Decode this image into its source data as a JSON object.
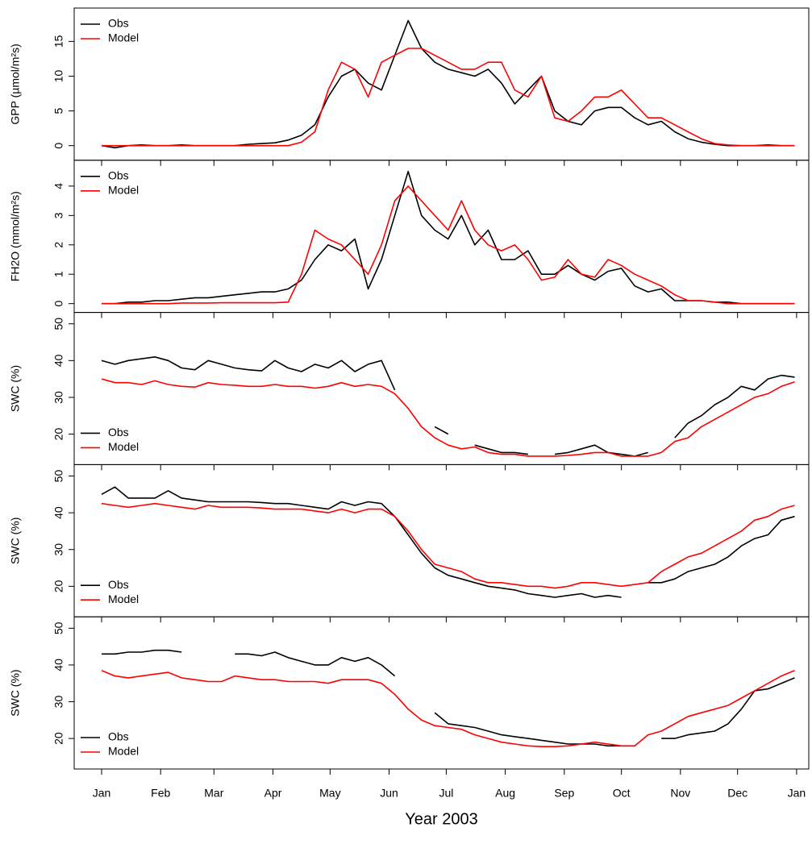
{
  "chart_data": [
    {
      "type": "line",
      "ylabel": "GPP (µmol/m²s)",
      "legend": "top-left",
      "x": [
        1,
        8,
        15,
        22,
        29,
        36,
        43,
        50,
        57,
        64,
        71,
        78,
        85,
        92,
        99,
        106,
        113,
        120,
        127,
        134,
        141,
        148,
        155,
        162,
        169,
        176,
        183,
        190,
        197,
        204,
        211,
        218,
        225,
        232,
        239,
        246,
        253,
        260,
        267,
        274,
        281,
        288,
        295,
        302,
        309,
        316,
        323,
        330,
        337,
        344,
        351,
        358,
        365
      ],
      "xlim": [
        -13.4,
        372.4
      ],
      "ylim": [
        -2.1,
        19.8
      ],
      "yticks": [
        0,
        5,
        10,
        15
      ],
      "series": [
        {
          "name": "Obs",
          "color": "#000000",
          "values": [
            0,
            -0.3,
            0,
            0.1,
            0,
            0,
            0.1,
            0,
            0,
            0,
            0,
            0.2,
            0.3,
            0.4,
            0.8,
            1.5,
            3,
            7,
            10,
            11,
            9,
            8,
            13,
            18,
            14,
            12,
            11,
            10.5,
            10,
            11,
            9,
            6,
            8,
            10,
            5,
            3.5,
            3,
            5,
            5.5,
            5.5,
            4,
            3,
            3.5,
            2,
            1,
            0.5,
            0.2,
            0,
            0,
            0,
            0.1,
            0,
            0
          ]
        },
        {
          "name": "Model",
          "color": "#ff0000",
          "values": [
            0,
            0,
            0,
            0,
            0,
            0,
            0,
            0,
            0,
            0,
            0,
            0,
            0,
            0,
            0,
            0.5,
            2,
            8,
            12,
            11,
            7,
            12,
            13,
            14,
            14,
            13,
            12,
            11,
            11,
            12,
            12,
            8,
            7,
            10,
            4,
            3.5,
            5,
            7,
            7,
            8,
            6,
            4,
            4,
            3,
            2,
            1,
            0.3,
            0.1,
            0,
            0,
            0,
            0,
            0
          ]
        }
      ]
    },
    {
      "type": "line",
      "ylabel": "FH2O (mmol/m²s)",
      "legend": "top-left",
      "x": [
        1,
        8,
        15,
        22,
        29,
        36,
        43,
        50,
        57,
        64,
        71,
        78,
        85,
        92,
        99,
        106,
        113,
        120,
        127,
        134,
        141,
        148,
        155,
        162,
        169,
        176,
        183,
        190,
        197,
        204,
        211,
        218,
        225,
        232,
        239,
        246,
        253,
        260,
        267,
        274,
        281,
        288,
        295,
        302,
        309,
        316,
        323,
        330,
        337,
        344,
        351,
        358,
        365
      ],
      "xlim": [
        -13.4,
        372.4
      ],
      "ylim": [
        -0.3,
        4.88
      ],
      "yticks": [
        0,
        1,
        2,
        3,
        4
      ],
      "series": [
        {
          "name": "Obs",
          "color": "#000000",
          "values": [
            0,
            0,
            0.05,
            0.05,
            0.1,
            0.1,
            0.15,
            0.2,
            0.2,
            0.25,
            0.3,
            0.35,
            0.4,
            0.4,
            0.5,
            0.8,
            1.5,
            2,
            1.8,
            2.2,
            0.5,
            1.5,
            3,
            4.5,
            3,
            2.5,
            2.2,
            3,
            2,
            2.5,
            1.5,
            1.5,
            1.8,
            1,
            1,
            1.3,
            1,
            0.8,
            1.1,
            1.2,
            0.6,
            0.4,
            0.5,
            0.1,
            0.1,
            0.1,
            0.05,
            0.05,
            0,
            0,
            0,
            0,
            0
          ]
        },
        {
          "name": "Model",
          "color": "#ff0000",
          "values": [
            0,
            0,
            0,
            0,
            0,
            0,
            0.02,
            0.02,
            0.02,
            0.03,
            0.03,
            0.03,
            0.03,
            0.03,
            0.05,
            1,
            2.5,
            2.2,
            2,
            1.5,
            1,
            2,
            3.5,
            4,
            3.5,
            3,
            2.5,
            3.5,
            2.5,
            2,
            1.8,
            2,
            1.5,
            0.8,
            0.9,
            1.5,
            1,
            0.9,
            1.5,
            1.3,
            1,
            0.8,
            0.6,
            0.3,
            0.1,
            0.1,
            0.05,
            0,
            0,
            0,
            0,
            0,
            0
          ]
        }
      ]
    },
    {
      "type": "line",
      "ylabel": "SWC (%)",
      "legend": "bottom-left",
      "x": [
        1,
        8,
        15,
        22,
        29,
        36,
        43,
        50,
        57,
        64,
        71,
        78,
        85,
        92,
        99,
        106,
        113,
        120,
        127,
        134,
        141,
        148,
        155,
        162,
        169,
        176,
        183,
        190,
        197,
        204,
        211,
        218,
        225,
        232,
        239,
        246,
        253,
        260,
        267,
        274,
        281,
        288,
        295,
        302,
        309,
        316,
        323,
        330,
        337,
        344,
        351,
        358,
        365
      ],
      "xlim": [
        -13.4,
        372.4
      ],
      "ylim": [
        11.7,
        53.1
      ],
      "yticks": [
        20,
        30,
        40,
        50
      ],
      "series": [
        {
          "name": "Obs",
          "color": "#000000",
          "values": [
            40,
            39,
            40,
            40.5,
            41,
            40,
            38,
            37.5,
            40,
            39,
            38,
            37.5,
            37.2,
            40,
            38,
            37,
            39,
            38,
            40,
            37,
            39,
            40,
            32,
            null,
            null,
            22,
            20,
            null,
            17,
            16,
            15,
            15,
            14.5,
            null,
            14.5,
            15,
            16,
            17,
            15,
            14.5,
            14,
            15,
            null,
            19,
            23,
            25,
            28,
            30,
            33,
            32,
            35,
            36,
            35.5
          ]
        },
        {
          "name": "Model",
          "color": "#ff0000",
          "values": [
            35,
            34,
            34,
            33.5,
            34.5,
            33.5,
            33,
            32.8,
            34,
            33.5,
            33.3,
            33,
            33,
            33.5,
            33,
            33,
            32.5,
            33,
            34,
            33,
            33.5,
            33,
            31,
            27,
            22,
            19,
            17,
            16,
            16.5,
            15,
            14.5,
            14.5,
            14,
            14,
            14,
            14.2,
            14.5,
            15,
            15,
            14,
            14,
            14,
            15,
            18,
            19,
            22,
            24,
            26,
            28,
            30,
            31,
            33,
            34.2
          ]
        }
      ]
    },
    {
      "type": "line",
      "ylabel": "SWC (%)",
      "legend": "bottom-left",
      "x": [
        1,
        8,
        15,
        22,
        29,
        36,
        43,
        50,
        57,
        64,
        71,
        78,
        85,
        92,
        99,
        106,
        113,
        120,
        127,
        134,
        141,
        148,
        155,
        162,
        169,
        176,
        183,
        190,
        197,
        204,
        211,
        218,
        225,
        232,
        239,
        246,
        253,
        260,
        267,
        274,
        281,
        288,
        295,
        302,
        309,
        316,
        323,
        330,
        337,
        344,
        351,
        358,
        365
      ],
      "xlim": [
        -13.4,
        372.4
      ],
      "ylim": [
        11.7,
        53.1
      ],
      "yticks": [
        20,
        30,
        40,
        50
      ],
      "series": [
        {
          "name": "Obs",
          "color": "#000000",
          "values": [
            45,
            47,
            44,
            44,
            44,
            46,
            44,
            43.5,
            43,
            43,
            43,
            43,
            42.8,
            42.5,
            42.5,
            42,
            41.5,
            41,
            43,
            42,
            43,
            42.5,
            39,
            34,
            29,
            25,
            23,
            22,
            21,
            20,
            19.5,
            19,
            18,
            17.5,
            17,
            17.5,
            18,
            17,
            17.5,
            17,
            null,
            21,
            21,
            22,
            24,
            25,
            26,
            28,
            31,
            33,
            34,
            38,
            39
          ]
        },
        {
          "name": "Model",
          "color": "#ff0000",
          "values": [
            42.5,
            42,
            41.5,
            42,
            42.5,
            42,
            41.5,
            41,
            42,
            41.5,
            41.5,
            41.5,
            41.3,
            41,
            41,
            41,
            40.5,
            40,
            41,
            40,
            41,
            41,
            39,
            35,
            30,
            26,
            25,
            24,
            22,
            21,
            21,
            20.5,
            20,
            20,
            19.5,
            20,
            21,
            21,
            20.5,
            20,
            20.5,
            21,
            24,
            26,
            28,
            29,
            31,
            33,
            35,
            38,
            39,
            41,
            42
          ]
        }
      ]
    },
    {
      "type": "line",
      "ylabel": "SWC (%)",
      "legend": "bottom-left",
      "xlabel": "Year 2003",
      "x": [
        1,
        8,
        15,
        22,
        29,
        36,
        43,
        50,
        57,
        64,
        71,
        78,
        85,
        92,
        99,
        106,
        113,
        120,
        127,
        134,
        141,
        148,
        155,
        162,
        169,
        176,
        183,
        190,
        197,
        204,
        211,
        218,
        225,
        232,
        239,
        246,
        253,
        260,
        267,
        274,
        281,
        288,
        295,
        302,
        309,
        316,
        323,
        330,
        337,
        344,
        351,
        358,
        365
      ],
      "xlim": [
        -13.4,
        372.4
      ],
      "ylim": [
        11.7,
        53.1
      ],
      "yticks": [
        20,
        30,
        40,
        50
      ],
      "xticks": [
        {
          "value": 1,
          "label": "Jan"
        },
        {
          "value": 32,
          "label": "Feb"
        },
        {
          "value": 60,
          "label": "Mar"
        },
        {
          "value": 91,
          "label": "Apr"
        },
        {
          "value": 121,
          "label": "May"
        },
        {
          "value": 152,
          "label": "Jun"
        },
        {
          "value": 182,
          "label": "Jul"
        },
        {
          "value": 213,
          "label": "Aug"
        },
        {
          "value": 244,
          "label": "Sep"
        },
        {
          "value": 274,
          "label": "Oct"
        },
        {
          "value": 305,
          "label": "Nov"
        },
        {
          "value": 335,
          "label": "Dec"
        },
        {
          "value": 366,
          "label": "Jan"
        }
      ],
      "series": [
        {
          "name": "Obs",
          "color": "#000000",
          "values": [
            43,
            43,
            43.5,
            43.5,
            44,
            44,
            43.5,
            null,
            null,
            null,
            43,
            43,
            42.5,
            43.5,
            42,
            41,
            40,
            40,
            42,
            41,
            42,
            40,
            37,
            null,
            null,
            27,
            24,
            23.5,
            23,
            22,
            21,
            20.5,
            20,
            19.5,
            19,
            18.5,
            18.5,
            18.5,
            18,
            18,
            18,
            null,
            20,
            20,
            21,
            21.5,
            22,
            24,
            28,
            33,
            33.5,
            35,
            36.5
          ]
        },
        {
          "name": "Model",
          "color": "#ff0000",
          "values": [
            38.5,
            37,
            36.5,
            37,
            37.5,
            38,
            36.5,
            36,
            35.5,
            35.5,
            37,
            36.5,
            36,
            36,
            35.5,
            35.5,
            35.5,
            35,
            36,
            36,
            36,
            35,
            32,
            28,
            25,
            23.5,
            23,
            22.5,
            21,
            20,
            19,
            18.5,
            18,
            17.8,
            17.8,
            18,
            18.5,
            19,
            18.5,
            18,
            18,
            21,
            22,
            24,
            26,
            27,
            28,
            29,
            31,
            33,
            35,
            37,
            38.5
          ]
        }
      ]
    }
  ]
}
